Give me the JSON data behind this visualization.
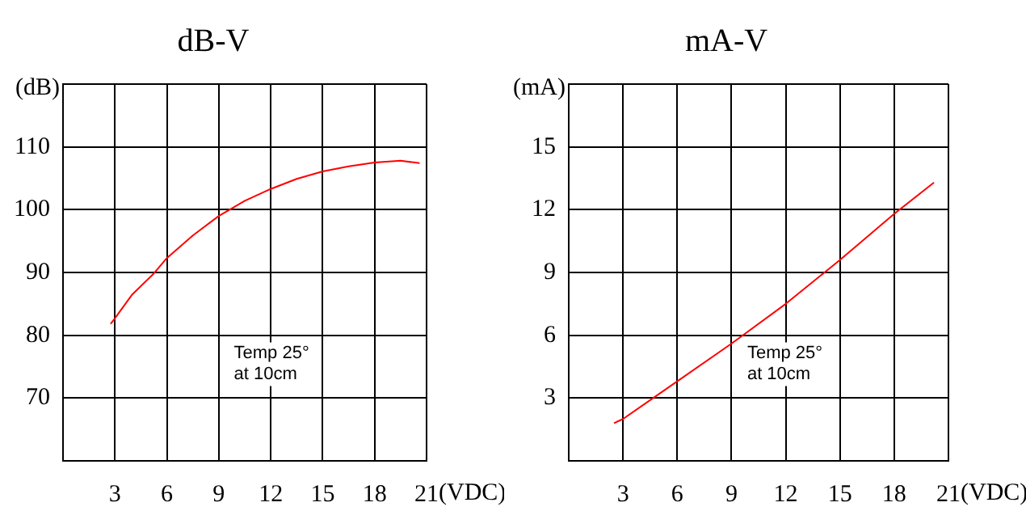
{
  "chart_data": [
    {
      "type": "line",
      "title": "dB-V",
      "xlabel": "(VDC)",
      "ylabel": "(dB)",
      "xlim": [
        0,
        21
      ],
      "xticks": [
        {
          "value": 0,
          "label": null
        },
        3,
        6,
        9,
        12,
        15,
        18,
        21
      ],
      "ylim": [
        60,
        120
      ],
      "yticks": [
        {
          "value": 60,
          "label": null
        },
        70,
        80,
        90,
        100,
        110,
        {
          "value": 120,
          "label": null
        }
      ],
      "grid": true,
      "legend": false,
      "marker": "none",
      "annotations": [
        "Temp 25°",
        "at 10cm"
      ],
      "series": [
        {
          "color": "#ff0000",
          "x": [
            2.75,
            3,
            4,
            5.2,
            6,
            7.5,
            9,
            10.5,
            12,
            13.5,
            15,
            16.5,
            18,
            19.5,
            20.6
          ],
          "values": [
            81.8,
            82.7,
            86.5,
            89.7,
            92.3,
            95.9,
            99,
            101.4,
            103.3,
            104.9,
            106.1,
            106.9,
            107.5,
            107.8,
            107.4
          ]
        }
      ]
    },
    {
      "type": "line",
      "title": "mA-V",
      "xlabel": "(VDC)",
      "ylabel": "(mA)",
      "xlim": [
        0,
        21
      ],
      "xticks": [
        {
          "value": 0,
          "label": null
        },
        3,
        6,
        9,
        12,
        15,
        18,
        21
      ],
      "ylim": [
        0,
        18
      ],
      "yticks": [
        {
          "value": 0,
          "label": null
        },
        3,
        6,
        9,
        12,
        15,
        {
          "value": 18,
          "label": null
        }
      ],
      "grid": true,
      "legend": false,
      "marker": "none",
      "annotations": [
        "Temp 25°",
        "at 10cm"
      ],
      "series": [
        {
          "color": "#ff0000",
          "x": [
            2.5,
            3,
            6,
            9,
            12,
            15,
            18,
            20.2
          ],
          "values": [
            1.8,
            2,
            3.8,
            5.6,
            7.5,
            9.6,
            11.8,
            13.3
          ]
        }
      ]
    }
  ]
}
